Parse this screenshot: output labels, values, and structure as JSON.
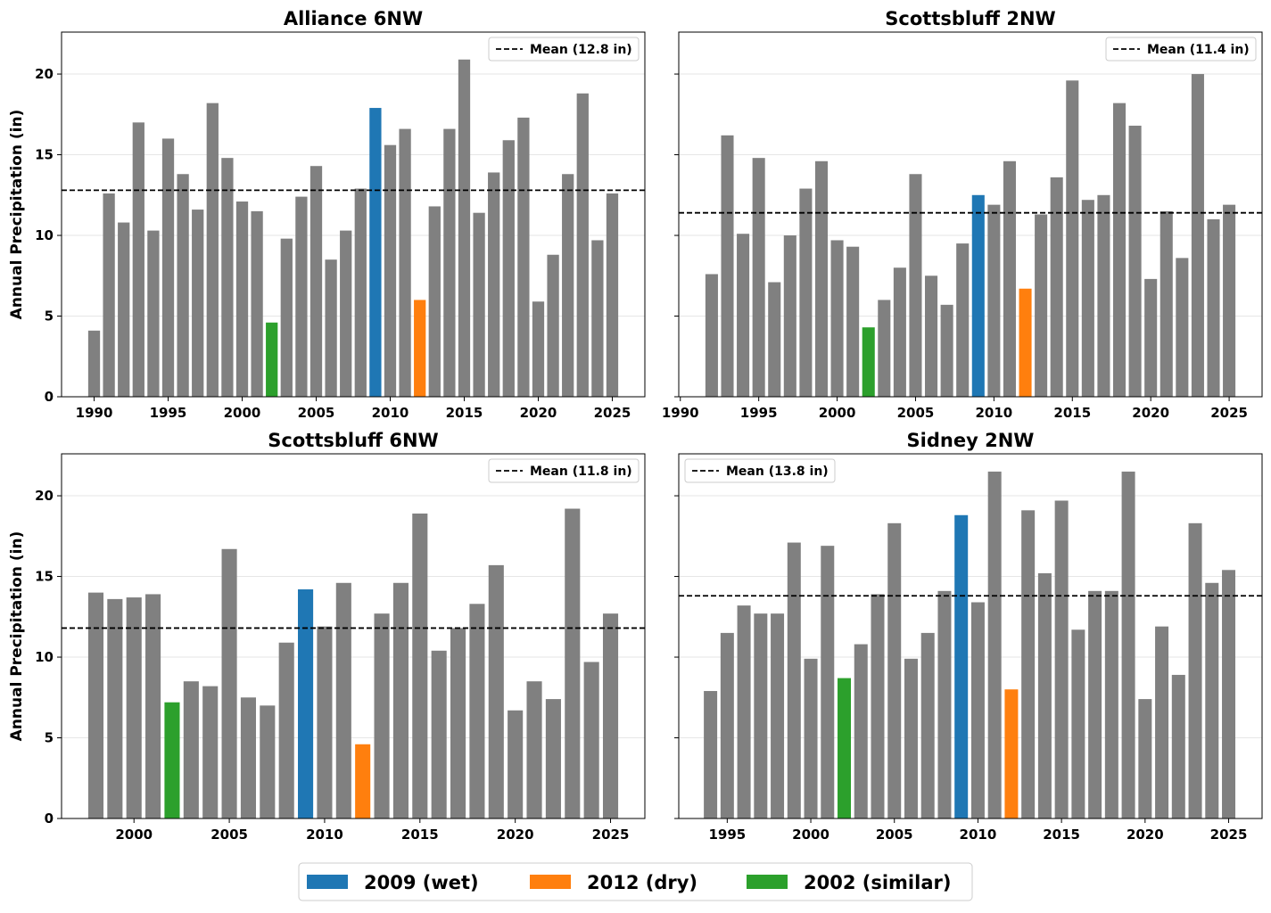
{
  "chart_data": [
    {
      "type": "bar",
      "title": "Alliance 6NW",
      "ylabel": "Annual Precipitation (in)",
      "xlim": [
        1987.8,
        2027.2
      ],
      "ylim": [
        0,
        22.6
      ],
      "yticks": [
        0,
        5,
        10,
        15,
        20
      ],
      "xticks": [
        1990,
        1995,
        2000,
        2005,
        2010,
        2015,
        2020,
        2025
      ],
      "grid": "horizontal",
      "mean": 12.8,
      "mean_label": "Mean (12.8 in)",
      "legend_position": "top-right",
      "x": [
        1990,
        1991,
        1992,
        1993,
        1994,
        1995,
        1996,
        1997,
        1998,
        1999,
        2000,
        2001,
        2002,
        2003,
        2004,
        2005,
        2006,
        2007,
        2008,
        2009,
        2010,
        2011,
        2012,
        2013,
        2014,
        2015,
        2016,
        2017,
        2018,
        2019,
        2020,
        2021,
        2022,
        2023,
        2024,
        2025
      ],
      "values": [
        4.1,
        12.6,
        10.8,
        17.0,
        10.3,
        16.0,
        13.8,
        11.6,
        18.2,
        14.8,
        12.1,
        11.5,
        4.6,
        9.8,
        12.4,
        14.3,
        8.5,
        10.3,
        12.9,
        17.9,
        15.6,
        16.6,
        6.0,
        11.8,
        16.6,
        20.9,
        11.4,
        13.9,
        15.9,
        17.3,
        5.9,
        8.8,
        13.8,
        18.8,
        9.7,
        12.6
      ]
    },
    {
      "type": "bar",
      "title": "Scottsbluff 2NW",
      "ylabel": "",
      "xlim": [
        1989.9,
        2027.1
      ],
      "ylim": [
        0,
        22.6
      ],
      "yticks": [
        0,
        5,
        10,
        15,
        20
      ],
      "xticks": [
        1990,
        1995,
        2000,
        2005,
        2010,
        2015,
        2020,
        2025
      ],
      "grid": "horizontal",
      "mean": 11.4,
      "mean_label": "Mean (11.4 in)",
      "legend_position": "top-right",
      "x": [
        1992,
        1993,
        1994,
        1995,
        1996,
        1997,
        1998,
        1999,
        2000,
        2001,
        2002,
        2003,
        2004,
        2005,
        2006,
        2007,
        2008,
        2009,
        2010,
        2011,
        2012,
        2013,
        2014,
        2015,
        2016,
        2017,
        2018,
        2019,
        2020,
        2021,
        2022,
        2023,
        2024,
        2025
      ],
      "values": [
        7.6,
        16.2,
        10.1,
        14.8,
        7.1,
        10.0,
        12.9,
        14.6,
        9.7,
        9.3,
        4.3,
        6.0,
        8.0,
        13.8,
        7.5,
        5.7,
        9.5,
        12.5,
        11.9,
        14.6,
        6.7,
        11.3,
        13.6,
        19.6,
        12.2,
        12.5,
        18.2,
        16.8,
        7.3,
        11.5,
        8.6,
        20.0,
        11.0,
        11.9
      ]
    },
    {
      "type": "bar",
      "title": "Scottsbluff 6NW",
      "ylabel": "Annual Precipitation (in)",
      "xlim": [
        1996.2,
        2026.8
      ],
      "ylim": [
        0,
        22.6
      ],
      "yticks": [
        0,
        5,
        10,
        15,
        20
      ],
      "xticks": [
        2000,
        2005,
        2010,
        2015,
        2020,
        2025
      ],
      "grid": "horizontal",
      "mean": 11.8,
      "mean_label": "Mean (11.8 in)",
      "legend_position": "top-right",
      "x": [
        1998,
        1999,
        2000,
        2001,
        2002,
        2003,
        2004,
        2005,
        2006,
        2007,
        2008,
        2009,
        2010,
        2011,
        2012,
        2013,
        2014,
        2015,
        2016,
        2017,
        2018,
        2019,
        2020,
        2021,
        2022,
        2023,
        2024,
        2025
      ],
      "values": [
        14.0,
        13.6,
        13.7,
        13.9,
        7.2,
        8.5,
        8.2,
        16.7,
        7.5,
        7.0,
        10.9,
        14.2,
        11.9,
        14.6,
        4.6,
        12.7,
        14.6,
        18.9,
        10.4,
        11.8,
        13.3,
        15.7,
        6.7,
        8.5,
        7.4,
        19.2,
        9.7,
        12.7
      ]
    },
    {
      "type": "bar",
      "title": "Sidney 2NW",
      "ylabel": "",
      "xlim": [
        1992.1,
        2027.0
      ],
      "ylim": [
        0,
        22.6
      ],
      "yticks": [
        0,
        5,
        10,
        15,
        20
      ],
      "xticks": [
        1995,
        2000,
        2005,
        2010,
        2015,
        2020,
        2025
      ],
      "grid": "horizontal",
      "mean": 13.8,
      "mean_label": "Mean (13.8 in)",
      "legend_position": "top-left",
      "x": [
        1994,
        1995,
        1996,
        1997,
        1998,
        1999,
        2000,
        2001,
        2002,
        2003,
        2004,
        2005,
        2006,
        2007,
        2008,
        2009,
        2010,
        2011,
        2012,
        2013,
        2014,
        2015,
        2016,
        2017,
        2018,
        2019,
        2020,
        2021,
        2022,
        2023,
        2024,
        2025
      ],
      "values": [
        7.9,
        11.5,
        13.2,
        12.7,
        12.7,
        17.1,
        9.9,
        16.9,
        8.7,
        10.8,
        13.9,
        18.3,
        9.9,
        11.5,
        14.1,
        18.8,
        13.4,
        21.5,
        8.0,
        19.1,
        15.2,
        19.7,
        11.7,
        14.1,
        14.1,
        21.5,
        7.4,
        11.9,
        8.9,
        18.3,
        14.6,
        15.4
      ]
    }
  ],
  "highlights": [
    {
      "year": 2009,
      "label": "2009 (wet)",
      "color": "#1f77b4"
    },
    {
      "year": 2012,
      "label": "2012 (dry)",
      "color": "#ff7f0e"
    },
    {
      "year": 2002,
      "label": "2002 (similar)",
      "color": "#2ca02c"
    }
  ],
  "default_bar_color": "#808080"
}
